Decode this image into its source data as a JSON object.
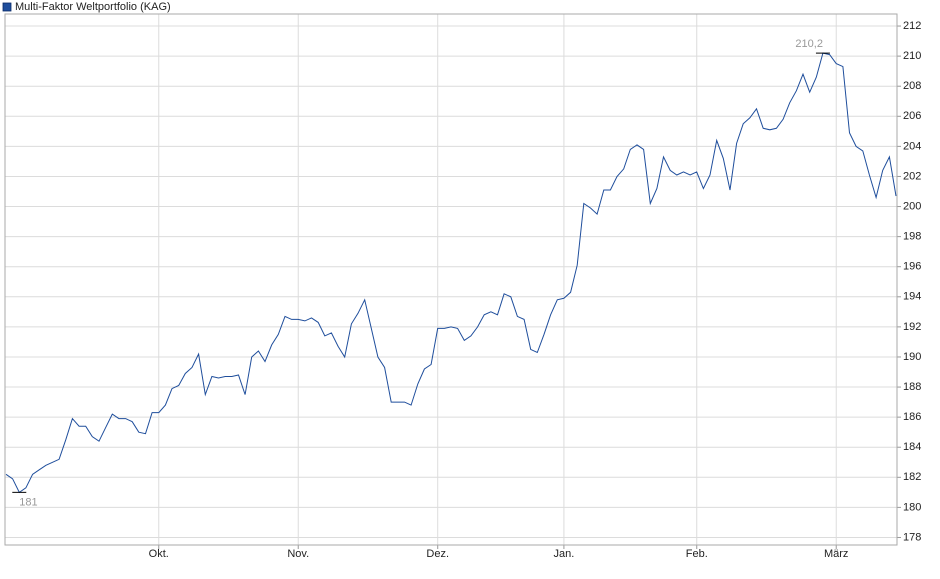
{
  "chart_data": {
    "type": "line",
    "series": [
      {
        "name": "Multi-Faktor Weltportfolio (KAG)",
        "color": "#1f4e9c",
        "values": [
          182.2,
          181.9,
          181.0,
          181.3,
          182.2,
          182.5,
          182.8,
          183.0,
          183.2,
          184.5,
          185.9,
          185.4,
          185.4,
          184.7,
          184.4,
          185.3,
          186.2,
          185.9,
          185.9,
          185.7,
          185.0,
          184.9,
          186.3,
          186.3,
          186.8,
          187.9,
          188.1,
          188.9,
          189.3,
          190.2,
          187.5,
          188.7,
          188.6,
          188.7,
          188.7,
          188.8,
          187.5,
          190.0,
          190.4,
          189.7,
          190.8,
          191.5,
          192.7,
          192.5,
          192.5,
          192.4,
          192.6,
          192.3,
          191.4,
          191.6,
          190.7,
          190.0,
          192.2,
          192.9,
          193.8,
          191.9,
          190.0,
          189.3,
          187.0,
          187.0,
          187.0,
          186.8,
          188.2,
          189.2,
          189.5,
          191.9,
          191.9,
          192.0,
          191.9,
          191.1,
          191.4,
          192.0,
          192.8,
          193.0,
          192.8,
          194.2,
          194.0,
          192.7,
          192.5,
          190.5,
          190.3,
          191.5,
          192.8,
          193.8,
          193.9,
          194.3,
          196.1,
          200.2,
          199.9,
          199.5,
          201.1,
          201.1,
          202.0,
          202.5,
          203.8,
          204.1,
          203.8,
          200.2,
          201.2,
          203.3,
          202.4,
          202.1,
          202.3,
          202.1,
          202.3,
          201.2,
          202.1,
          204.4,
          203.2,
          201.1,
          204.2,
          205.5,
          205.9,
          206.5,
          205.2,
          205.1,
          205.2,
          205.8,
          206.9,
          207.7,
          208.8,
          207.6,
          208.6,
          210.2,
          210.1,
          209.5,
          209.3,
          204.9,
          204.0,
          203.7,
          202.1,
          200.6,
          202.4,
          203.3,
          200.7
        ],
        "value_labels": [
          null,
          null,
          "181",
          null,
          null,
          null,
          null,
          null,
          null,
          null,
          null,
          null,
          null,
          null,
          null,
          null,
          null,
          null,
          null,
          null,
          null,
          null,
          null,
          null,
          null,
          null,
          null,
          null,
          null,
          null,
          null,
          null,
          null,
          null,
          null,
          null,
          null,
          null,
          null,
          null,
          null,
          null,
          null,
          null,
          null,
          null,
          null,
          null,
          null,
          null,
          null,
          null,
          null,
          null,
          null,
          null,
          null,
          null,
          null,
          null,
          null,
          null,
          null,
          null,
          null,
          null,
          null,
          null,
          null,
          null,
          null,
          null,
          null,
          null,
          null,
          null,
          null,
          null,
          null,
          null,
          null,
          null,
          null,
          null,
          null,
          null,
          null,
          null,
          null,
          null,
          null,
          null,
          null,
          null,
          null,
          null,
          null,
          null,
          null,
          null,
          null,
          null,
          null,
          null,
          null,
          null,
          null,
          null,
          null,
          null,
          null,
          null,
          null,
          null,
          null,
          null,
          null,
          null,
          null,
          null,
          null,
          null,
          null,
          "210,2",
          null,
          null,
          null,
          null,
          null,
          null,
          null,
          null,
          null,
          null,
          null
        ]
      }
    ],
    "categories": [
      null,
      null,
      null,
      null,
      null,
      null,
      null,
      null,
      null,
      null,
      null,
      null,
      null,
      null,
      null,
      null,
      null,
      null,
      null,
      null,
      null,
      null,
      null,
      "Okt.",
      null,
      null,
      null,
      null,
      null,
      null,
      null,
      null,
      null,
      null,
      null,
      null,
      null,
      null,
      null,
      null,
      null,
      null,
      null,
      null,
      "Nov.",
      null,
      null,
      null,
      null,
      null,
      null,
      null,
      null,
      null,
      null,
      null,
      null,
      null,
      null,
      null,
      null,
      null,
      null,
      null,
      null,
      "Dez.",
      null,
      null,
      null,
      null,
      null,
      null,
      null,
      null,
      null,
      null,
      null,
      null,
      null,
      null,
      null,
      null,
      null,
      null,
      "Jan.",
      null,
      null,
      null,
      null,
      null,
      null,
      null,
      null,
      null,
      null,
      null,
      null,
      null,
      null,
      null,
      null,
      null,
      null,
      null,
      "Feb.",
      null,
      null,
      null,
      null,
      null,
      null,
      null,
      null,
      null,
      null,
      null,
      null,
      null,
      null,
      null,
      null,
      null,
      null,
      null,
      null,
      "März",
      null,
      null,
      null,
      null,
      null,
      null,
      null,
      null,
      null
    ],
    "ylim": [
      177.5,
      212.8
    ],
    "yticks": [
      178,
      180,
      182,
      184,
      186,
      188,
      190,
      192,
      194,
      196,
      198,
      200,
      202,
      204,
      206,
      208,
      210,
      212
    ],
    "grid": true,
    "legend": "top-left"
  }
}
